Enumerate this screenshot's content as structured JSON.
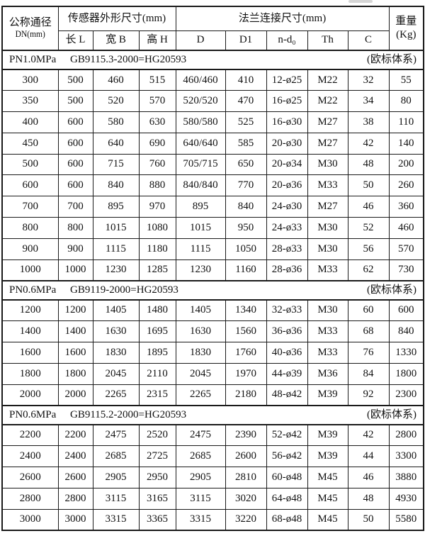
{
  "colors": {
    "border": "#1a1a1a",
    "background": "#ffffff",
    "text": "#111111"
  },
  "table": {
    "header": {
      "dn_line1": "公称通径",
      "dn_line2": "DN(mm)",
      "sensor_group": "传感器外形尺寸(mm)",
      "sensor_cols": [
        "长 L",
        "宽 B",
        "高 H"
      ],
      "flange_group": "法兰连接尺寸(mm)",
      "flange_cols": [
        "D",
        "D1",
        "n-d₀",
        "Th",
        "C"
      ],
      "weight_line1": "重量",
      "weight_line2": "(Kg)"
    },
    "sections": [
      {
        "pressure": "PN1.0MPa",
        "standard": "GB9115.3-2000=HG20593",
        "note": "(欧标体系)",
        "rows": [
          [
            "300",
            "500",
            "460",
            "515",
            "460/460",
            "410",
            "12-ø25",
            "M22",
            "32",
            "55"
          ],
          [
            "350",
            "500",
            "520",
            "570",
            "520/520",
            "470",
            "16-ø25",
            "M22",
            "34",
            "80"
          ],
          [
            "400",
            "600",
            "580",
            "630",
            "580/580",
            "525",
            "16-ø30",
            "M27",
            "38",
            "110"
          ],
          [
            "450",
            "600",
            "640",
            "690",
            "640/640",
            "585",
            "20-ø30",
            "M27",
            "42",
            "140"
          ],
          [
            "500",
            "600",
            "715",
            "760",
            "705/715",
            "650",
            "20-ø34",
            "M30",
            "48",
            "200"
          ],
          [
            "600",
            "600",
            "840",
            "880",
            "840/840",
            "770",
            "20-ø36",
            "M33",
            "50",
            "260"
          ],
          [
            "700",
            "700",
            "895",
            "970",
            "895",
            "840",
            "24-ø30",
            "M27",
            "46",
            "360"
          ],
          [
            "800",
            "800",
            "1015",
            "1080",
            "1015",
            "950",
            "24-ø33",
            "M30",
            "52",
            "460"
          ],
          [
            "900",
            "900",
            "1115",
            "1180",
            "1115",
            "1050",
            "28-ø33",
            "M30",
            "56",
            "570"
          ],
          [
            "1000",
            "1000",
            "1230",
            "1285",
            "1230",
            "1160",
            "28-ø36",
            "M33",
            "62",
            "730"
          ]
        ]
      },
      {
        "pressure": "PN0.6MPa",
        "standard": "GB9119-2000=HG20593",
        "note": "(欧标体系)",
        "rows": [
          [
            "1200",
            "1200",
            "1405",
            "1480",
            "1405",
            "1340",
            "32-ø33",
            "M30",
            "60",
            "600"
          ],
          [
            "1400",
            "1400",
            "1630",
            "1695",
            "1630",
            "1560",
            "36-ø36",
            "M33",
            "68",
            "840"
          ],
          [
            "1600",
            "1600",
            "1830",
            "1895",
            "1830",
            "1760",
            "40-ø36",
            "M33",
            "76",
            "1330"
          ],
          [
            "1800",
            "1800",
            "2045",
            "2110",
            "2045",
            "1970",
            "44-ø39",
            "M36",
            "84",
            "1800"
          ],
          [
            "2000",
            "2000",
            "2265",
            "2315",
            "2265",
            "2180",
            "48-ø42",
            "M39",
            "92",
            "2300"
          ]
        ]
      },
      {
        "pressure": "PN0.6MPa",
        "standard": "GB9115.2-2000=HG20593",
        "note": "(欧标体系)",
        "rows": [
          [
            "2200",
            "2200",
            "2475",
            "2520",
            "2475",
            "2390",
            "52-ø42",
            "M39",
            "42",
            "2800"
          ],
          [
            "2400",
            "2400",
            "2685",
            "2725",
            "2685",
            "2600",
            "56-ø42",
            "M39",
            "44",
            "3300"
          ],
          [
            "2600",
            "2600",
            "2905",
            "2950",
            "2905",
            "2810",
            "60-ø48",
            "M45",
            "46",
            "3880"
          ],
          [
            "2800",
            "2800",
            "3115",
            "3165",
            "3115",
            "3020",
            "64-ø48",
            "M45",
            "48",
            "4930"
          ],
          [
            "3000",
            "3000",
            "3315",
            "3365",
            "3315",
            "3220",
            "68-ø48",
            "M45",
            "50",
            "5580"
          ]
        ]
      }
    ]
  }
}
